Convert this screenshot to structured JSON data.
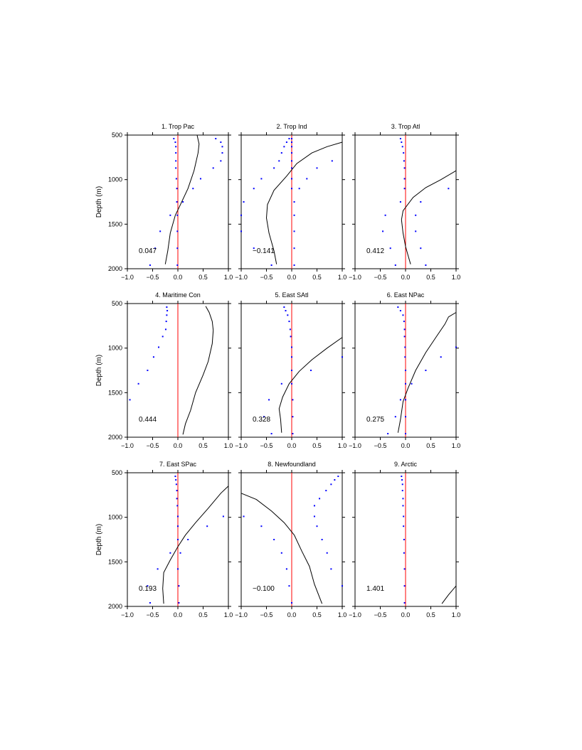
{
  "colors": {
    "zero_line": "#ff0000",
    "points": "#0000ff",
    "curve": "#000000",
    "frame": "#000000"
  },
  "chart_data": [
    {
      "type": "line",
      "title": "1. Trop Pac",
      "ylabel": "Depth (m)",
      "xlim": [
        -1.0,
        1.0
      ],
      "ylim": [
        500,
        2000
      ],
      "y_inverted": true,
      "xticks": [
        "-1.0",
        "-0.5",
        "0.0",
        "0.5",
        "1.0"
      ],
      "yticks": [
        "500",
        "1000",
        "1500",
        "2000"
      ],
      "annotation": "0.047",
      "reference_line_x": 0,
      "curve": [
        [
          0.38,
          500
        ],
        [
          0.42,
          600
        ],
        [
          0.4,
          700
        ],
        [
          0.32,
          900
        ],
        [
          0.2,
          1100
        ],
        [
          0.05,
          1280
        ],
        [
          -0.05,
          1400
        ],
        [
          -0.15,
          1600
        ],
        [
          -0.2,
          1800
        ],
        [
          -0.25,
          1950
        ]
      ],
      "points": [
        [
          -0.08,
          540
        ],
        [
          -0.05,
          580
        ],
        [
          -0.04,
          630
        ],
        [
          -0.04,
          700
        ],
        [
          -0.04,
          790
        ],
        [
          -0.04,
          870
        ],
        [
          -0.03,
          990
        ],
        [
          -0.02,
          1100
        ],
        [
          -0.02,
          1250
        ],
        [
          -0.01,
          1400
        ],
        [
          -0.01,
          1580
        ],
        [
          -0.01,
          1770
        ],
        [
          -0.01,
          1960
        ]
      ],
      "points2": [
        [
          0.75,
          540
        ],
        [
          0.85,
          580
        ],
        [
          0.88,
          630
        ],
        [
          0.88,
          700
        ],
        [
          0.85,
          790
        ],
        [
          0.7,
          870
        ],
        [
          0.45,
          990
        ],
        [
          0.3,
          1100
        ],
        [
          0.1,
          1250
        ],
        [
          -0.15,
          1400
        ],
        [
          -0.35,
          1580
        ],
        [
          -0.45,
          1770
        ],
        [
          -0.55,
          1960
        ]
      ]
    },
    {
      "type": "line",
      "title": "2. Trop Ind",
      "xlim": [
        -1.0,
        1.0
      ],
      "ylim": [
        500,
        2000
      ],
      "y_inverted": true,
      "xticks": [
        "-1.0",
        "-0.5",
        "0.0",
        "0.5",
        "1.0"
      ],
      "yticks": [],
      "annotation": "−0.141",
      "reference_line_x": 0,
      "curve": [
        [
          1.0,
          580
        ],
        [
          0.7,
          630
        ],
        [
          0.4,
          700
        ],
        [
          0.1,
          820
        ],
        [
          -0.1,
          960
        ],
        [
          -0.35,
          1120
        ],
        [
          -0.48,
          1280
        ],
        [
          -0.5,
          1430
        ],
        [
          -0.45,
          1600
        ],
        [
          -0.35,
          1800
        ],
        [
          -0.3,
          1950
        ]
      ],
      "points": [
        [
          -0.05,
          540
        ],
        [
          -0.1,
          580
        ],
        [
          -0.15,
          630
        ],
        [
          -0.2,
          700
        ],
        [
          -0.25,
          790
        ],
        [
          -0.35,
          870
        ],
        [
          -0.6,
          990
        ],
        [
          -0.75,
          1100
        ],
        [
          -0.95,
          1250
        ],
        [
          -1.0,
          1400
        ],
        [
          -1.0,
          1580
        ],
        [
          -0.75,
          1770
        ],
        [
          -0.4,
          1960
        ]
      ],
      "points2": [
        [
          0.0,
          540
        ],
        [
          0.0,
          580
        ],
        [
          0.0,
          630
        ],
        [
          0.0,
          700
        ],
        [
          0.0,
          790
        ],
        [
          0.0,
          870
        ],
        [
          0.0,
          990
        ],
        [
          0.0,
          1100
        ],
        [
          0.05,
          1250
        ],
        [
          0.05,
          1400
        ],
        [
          0.05,
          1580
        ],
        [
          0.05,
          1770
        ],
        [
          0.05,
          1960
        ]
      ],
      "points3": [
        [
          0.8,
          790
        ],
        [
          0.5,
          870
        ],
        [
          0.3,
          990
        ],
        [
          0.15,
          1100
        ]
      ]
    },
    {
      "type": "line",
      "title": "3. Trop Atl",
      "xlim": [
        -1.0,
        1.0
      ],
      "ylim": [
        500,
        2000
      ],
      "y_inverted": true,
      "xticks": [
        "-1.0",
        "-0.5",
        "0.0",
        "0.5",
        "1.0"
      ],
      "yticks": [],
      "annotation": "0.412",
      "reference_line_x": 0,
      "curve": [
        [
          1.0,
          900
        ],
        [
          0.7,
          1000
        ],
        [
          0.4,
          1090
        ],
        [
          0.15,
          1200
        ],
        [
          -0.05,
          1350
        ],
        [
          -0.08,
          1450
        ],
        [
          -0.05,
          1600
        ],
        [
          0.0,
          1750
        ],
        [
          0.05,
          1850
        ],
        [
          0.1,
          1950
        ]
      ],
      "points": [
        [
          -0.1,
          540
        ],
        [
          -0.08,
          580
        ],
        [
          -0.06,
          630
        ],
        [
          -0.04,
          700
        ],
        [
          -0.03,
          790
        ],
        [
          -0.02,
          870
        ],
        [
          -0.02,
          990
        ],
        [
          -0.02,
          1100
        ],
        [
          -0.1,
          1250
        ],
        [
          -0.4,
          1400
        ],
        [
          -0.45,
          1580
        ],
        [
          -0.3,
          1770
        ],
        [
          -0.2,
          1960
        ]
      ],
      "points2": [
        [
          0.85,
          1100
        ],
        [
          0.3,
          1250
        ],
        [
          0.2,
          1400
        ],
        [
          0.2,
          1580
        ],
        [
          0.3,
          1770
        ],
        [
          0.4,
          1960
        ]
      ]
    },
    {
      "type": "line",
      "title": "4. Maritime Con",
      "ylabel": "Depth (m)",
      "xlim": [
        -1.0,
        1.0
      ],
      "ylim": [
        500,
        2000
      ],
      "y_inverted": true,
      "xticks": [
        "-1.0",
        "-0.5",
        "0.0",
        "0.5",
        "1.0"
      ],
      "yticks": [
        "500",
        "1000",
        "1500",
        "2000"
      ],
      "annotation": "0.444",
      "reference_line_x": 0,
      "curve": [
        [
          0.55,
          530
        ],
        [
          0.62,
          600
        ],
        [
          0.68,
          700
        ],
        [
          0.7,
          800
        ],
        [
          0.68,
          950
        ],
        [
          0.6,
          1150
        ],
        [
          0.5,
          1300
        ],
        [
          0.35,
          1500
        ],
        [
          0.25,
          1700
        ],
        [
          0.15,
          1850
        ],
        [
          0.1,
          1970
        ]
      ],
      "points": [
        [
          -0.22,
          540
        ],
        [
          -0.21,
          580
        ],
        [
          -0.22,
          630
        ],
        [
          -0.23,
          700
        ],
        [
          -0.24,
          790
        ],
        [
          -0.3,
          870
        ],
        [
          -0.38,
          990
        ],
        [
          -0.48,
          1100
        ],
        [
          -0.6,
          1250
        ],
        [
          -0.78,
          1400
        ],
        [
          -0.95,
          1580
        ]
      ]
    },
    {
      "type": "line",
      "title": "5. East SAtl",
      "xlim": [
        -1.0,
        1.0
      ],
      "ylim": [
        500,
        2000
      ],
      "y_inverted": true,
      "xticks": [
        "-1.0",
        "-0.5",
        "0.0",
        "0.5",
        "1.0"
      ],
      "yticks": [],
      "annotation": "0.328",
      "reference_line_x": 0,
      "curve": [
        [
          1.0,
          880
        ],
        [
          0.7,
          1000
        ],
        [
          0.4,
          1130
        ],
        [
          0.15,
          1260
        ],
        [
          -0.05,
          1400
        ],
        [
          -0.18,
          1550
        ],
        [
          -0.25,
          1680
        ],
        [
          -0.22,
          1800
        ],
        [
          -0.2,
          1950
        ]
      ],
      "points": [
        [
          -0.15,
          540
        ],
        [
          -0.12,
          580
        ],
        [
          -0.08,
          630
        ],
        [
          -0.05,
          700
        ],
        [
          -0.03,
          790
        ],
        [
          -0.02,
          870
        ],
        [
          0.0,
          990
        ],
        [
          0.0,
          1100
        ],
        [
          0.0,
          1250
        ],
        [
          0.0,
          1400
        ],
        [
          0.02,
          1580
        ],
        [
          0.02,
          1770
        ],
        [
          0.02,
          1960
        ]
      ],
      "points2": [
        [
          1.0,
          1100
        ],
        [
          0.38,
          1250
        ],
        [
          -0.2,
          1400
        ],
        [
          -0.45,
          1580
        ],
        [
          -0.55,
          1770
        ],
        [
          -0.4,
          1960
        ]
      ]
    },
    {
      "type": "line",
      "title": "6. East NPac",
      "xlim": [
        -1.0,
        1.0
      ],
      "ylim": [
        500,
        2000
      ],
      "y_inverted": true,
      "xticks": [
        "-1.0",
        "-0.5",
        "0.0",
        "0.5",
        "1.0"
      ],
      "yticks": [],
      "annotation": "0.275",
      "reference_line_x": 0,
      "curve": [
        [
          1.0,
          600
        ],
        [
          0.85,
          650
        ],
        [
          0.78,
          730
        ],
        [
          0.6,
          880
        ],
        [
          0.4,
          1050
        ],
        [
          0.2,
          1250
        ],
        [
          0.05,
          1450
        ],
        [
          -0.05,
          1600
        ],
        [
          -0.1,
          1800
        ],
        [
          -0.15,
          1950
        ]
      ],
      "points": [
        [
          -0.15,
          540
        ],
        [
          -0.1,
          580
        ],
        [
          -0.05,
          630
        ],
        [
          -0.03,
          700
        ],
        [
          -0.02,
          790
        ],
        [
          -0.02,
          870
        ],
        [
          -0.01,
          990
        ],
        [
          -0.01,
          1100
        ],
        [
          0.0,
          1250
        ],
        [
          0.0,
          1400
        ],
        [
          0.0,
          1580
        ],
        [
          0.0,
          1770
        ],
        [
          0.0,
          1960
        ]
      ],
      "points2": [
        [
          1.0,
          990
        ],
        [
          0.7,
          1100
        ],
        [
          0.4,
          1250
        ],
        [
          0.12,
          1400
        ],
        [
          -0.1,
          1580
        ],
        [
          -0.2,
          1770
        ],
        [
          -0.35,
          1960
        ]
      ]
    },
    {
      "type": "line",
      "title": "7. East SPac",
      "ylabel": "Depth (m)",
      "xlim": [
        -1.0,
        1.0
      ],
      "ylim": [
        500,
        2000
      ],
      "y_inverted": true,
      "xticks": [
        "-1.0",
        "-0.5",
        "0.0",
        "0.5",
        "1.0"
      ],
      "yticks": [
        "500",
        "1000",
        "1500",
        "2000"
      ],
      "annotation": "0.193",
      "reference_line_x": 0,
      "curve": [
        [
          1.0,
          650
        ],
        [
          0.85,
          730
        ],
        [
          0.6,
          900
        ],
        [
          0.35,
          1060
        ],
        [
          0.15,
          1200
        ],
        [
          0.0,
          1330
        ],
        [
          -0.15,
          1480
        ],
        [
          -0.28,
          1620
        ],
        [
          -0.3,
          1800
        ],
        [
          -0.28,
          1970
        ]
      ],
      "points": [
        [
          -0.05,
          540
        ],
        [
          -0.04,
          580
        ],
        [
          -0.03,
          630
        ],
        [
          -0.02,
          700
        ],
        [
          -0.02,
          790
        ],
        [
          -0.01,
          870
        ],
        [
          0.0,
          990
        ],
        [
          0.0,
          1100
        ],
        [
          0.0,
          1250
        ],
        [
          0.05,
          1400
        ],
        [
          0.0,
          1580
        ],
        [
          0.02,
          1770
        ],
        [
          0.02,
          1960
        ]
      ],
      "points2": [
        [
          0.9,
          990
        ],
        [
          0.58,
          1100
        ],
        [
          0.2,
          1250
        ],
        [
          -0.15,
          1400
        ],
        [
          -0.4,
          1580
        ],
        [
          -0.6,
          1770
        ],
        [
          -0.55,
          1960
        ]
      ]
    },
    {
      "type": "line",
      "title": "8. Newfoundland",
      "xlim": [
        -1.0,
        1.0
      ],
      "ylim": [
        500,
        2000
      ],
      "y_inverted": true,
      "xticks": [
        "-1.0",
        "-0.5",
        "0.0",
        "0.5",
        "1.0"
      ],
      "yticks": [],
      "annotation": "−0.100",
      "reference_line_x": 0,
      "curve": [
        [
          -1.0,
          730
        ],
        [
          -0.7,
          800
        ],
        [
          -0.4,
          930
        ],
        [
          -0.15,
          1060
        ],
        [
          0.05,
          1200
        ],
        [
          0.2,
          1380
        ],
        [
          0.35,
          1550
        ],
        [
          0.45,
          1750
        ],
        [
          0.6,
          1970
        ]
      ],
      "points": [
        [
          0.92,
          540
        ],
        [
          0.85,
          580
        ],
        [
          0.78,
          630
        ],
        [
          0.68,
          700
        ],
        [
          0.55,
          790
        ],
        [
          0.45,
          870
        ],
        [
          0.45,
          990
        ],
        [
          0.5,
          1100
        ],
        [
          0.6,
          1250
        ],
        [
          0.7,
          1400
        ],
        [
          0.78,
          1580
        ],
        [
          1.0,
          1770
        ]
      ],
      "points2": [
        [
          -0.95,
          990
        ],
        [
          -0.6,
          1100
        ],
        [
          -0.35,
          1250
        ],
        [
          -0.2,
          1400
        ],
        [
          -0.1,
          1580
        ],
        [
          -0.05,
          1770
        ],
        [
          0.0,
          1960
        ]
      ]
    },
    {
      "type": "line",
      "title": "9. Arctic",
      "xlim": [
        -1.0,
        1.0
      ],
      "ylim": [
        500,
        2000
      ],
      "y_inverted": true,
      "xticks": [
        "-1.0",
        "-0.5",
        "0.0",
        "0.5",
        "1.0"
      ],
      "yticks": [],
      "annotation": "1.401",
      "reference_line_x": 0,
      "curve": [
        [
          1.0,
          1770
        ],
        [
          0.85,
          1870
        ],
        [
          0.72,
          1970
        ]
      ],
      "points": [
        [
          -0.08,
          540
        ],
        [
          -0.07,
          580
        ],
        [
          -0.06,
          630
        ],
        [
          -0.06,
          700
        ],
        [
          -0.05,
          790
        ],
        [
          -0.05,
          870
        ],
        [
          -0.04,
          990
        ],
        [
          -0.04,
          1100
        ],
        [
          -0.03,
          1250
        ],
        [
          -0.03,
          1400
        ],
        [
          -0.02,
          1580
        ],
        [
          -0.02,
          1770
        ],
        [
          -0.02,
          1960
        ]
      ]
    }
  ]
}
